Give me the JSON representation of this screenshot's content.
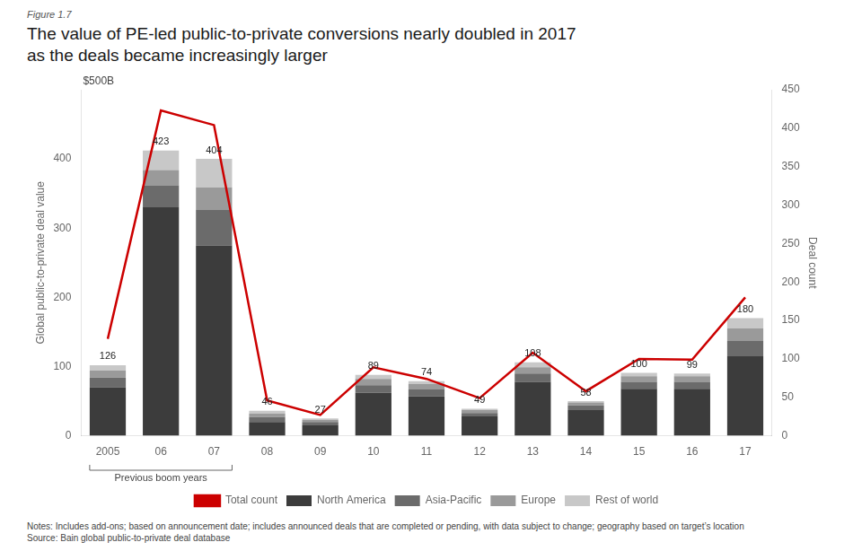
{
  "chart_data": {
    "type": "bar",
    "figure_label": "Figure 1.7",
    "title": [
      "The value of PE-led public-to-private conversions nearly doubled in 2017",
      "as the deals became increasingly larger"
    ],
    "y_label": "Global public-to-private deal value",
    "y2_label": "Deal count",
    "categories": [
      "2005",
      "06",
      "07",
      "08",
      "09",
      "10",
      "11",
      "12",
      "13",
      "14",
      "15",
      "16",
      "17"
    ],
    "series": [
      {
        "name": "Total count",
        "type": "line",
        "axis": "y2",
        "color": "#cc0000",
        "data_labels": true,
        "values": [
          126,
          423,
          404,
          46,
          27,
          89,
          74,
          49,
          108,
          58,
          100,
          99,
          180
        ]
      },
      {
        "name": "North America",
        "type": "bar",
        "color": "#3c3c3c",
        "values": [
          70,
          330,
          275,
          20,
          15,
          62,
          57,
          28,
          78,
          37,
          68,
          68,
          115
        ]
      },
      {
        "name": "Asia-Pacific",
        "type": "bar",
        "color": "#6b6b6b",
        "values": [
          14,
          32,
          52,
          7,
          5,
          11,
          10,
          5,
          12,
          7,
          10,
          10,
          22
        ]
      },
      {
        "name": "Europe",
        "type": "bar",
        "color": "#9a9a9a",
        "values": [
          10,
          22,
          32,
          5,
          3,
          9,
          8,
          4,
          9,
          4,
          8,
          8,
          18
        ]
      },
      {
        "name": "Rest of world",
        "type": "bar",
        "color": "#c8c8c8",
        "values": [
          8,
          28,
          41,
          4,
          2,
          6,
          4,
          2,
          7,
          2,
          5,
          4,
          15
        ]
      }
    ],
    "stacked": true,
    "ylim": [
      0,
      500
    ],
    "yticks": [
      0,
      100,
      200,
      300,
      400
    ],
    "y2lim": [
      0,
      450
    ],
    "y2ticks": [
      0,
      50,
      100,
      150,
      200,
      250,
      300,
      350,
      400,
      450
    ],
    "grid": false,
    "legend": "bottom",
    "annotations": [
      {
        "text": "$500B",
        "axis": "y",
        "value": 500
      },
      {
        "text": "Previous boom years",
        "from": "2005",
        "to": "07"
      }
    ],
    "notes": "Notes: Includes add-ons; based on announcement date; includes announced deals that are completed or pending, with data subject to change; geography based on target’s location",
    "source": "Source: Bain global public-to-private deal database"
  }
}
